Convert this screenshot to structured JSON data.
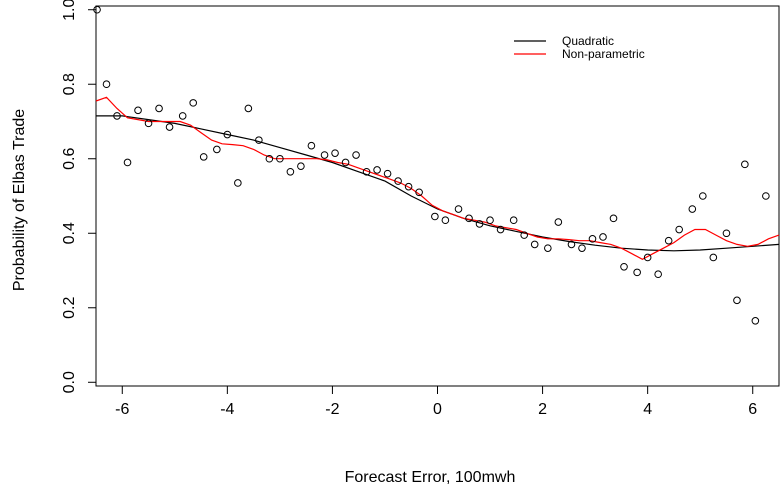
{
  "chart_data": {
    "type": "scatter",
    "title": "",
    "xlabel": "Forecast Error, 100mwh",
    "ylabel": "Probability of Elbas Trade",
    "xlim": [
      -6.5,
      6.5
    ],
    "ylim": [
      -0.01,
      1.01
    ],
    "x_ticks": [
      -6,
      -4,
      -2,
      0,
      2,
      4,
      6
    ],
    "y_ticks": [
      0.0,
      0.2,
      0.4,
      0.6,
      0.8,
      1.0
    ],
    "x_tick_labels": [
      "-6",
      "-4",
      "-2",
      "0",
      "2",
      "4",
      "6"
    ],
    "y_tick_labels": [
      "0.0",
      "0.2",
      "0.4",
      "0.6",
      "0.8",
      "1.0"
    ],
    "legend_position": "top-right",
    "grid": false,
    "points": [
      {
        "x": -6.48,
        "y": 1.0
      },
      {
        "x": -6.3,
        "y": 0.8
      },
      {
        "x": -6.1,
        "y": 0.715
      },
      {
        "x": -5.9,
        "y": 0.59
      },
      {
        "x": -5.7,
        "y": 0.73
      },
      {
        "x": -5.5,
        "y": 0.695
      },
      {
        "x": -5.3,
        "y": 0.735
      },
      {
        "x": -5.1,
        "y": 0.685
      },
      {
        "x": -4.85,
        "y": 0.715
      },
      {
        "x": -4.65,
        "y": 0.75
      },
      {
        "x": -4.45,
        "y": 0.605
      },
      {
        "x": -4.2,
        "y": 0.625
      },
      {
        "x": -4.0,
        "y": 0.665
      },
      {
        "x": -3.8,
        "y": 0.535
      },
      {
        "x": -3.6,
        "y": 0.735
      },
      {
        "x": -3.4,
        "y": 0.65
      },
      {
        "x": -3.2,
        "y": 0.6
      },
      {
        "x": -3.0,
        "y": 0.6
      },
      {
        "x": -2.8,
        "y": 0.565
      },
      {
        "x": -2.6,
        "y": 0.58
      },
      {
        "x": -2.4,
        "y": 0.635
      },
      {
        "x": -2.15,
        "y": 0.61
      },
      {
        "x": -1.95,
        "y": 0.615
      },
      {
        "x": -1.75,
        "y": 0.59
      },
      {
        "x": -1.55,
        "y": 0.61
      },
      {
        "x": -1.35,
        "y": 0.565
      },
      {
        "x": -1.15,
        "y": 0.57
      },
      {
        "x": -0.95,
        "y": 0.56
      },
      {
        "x": -0.75,
        "y": 0.54
      },
      {
        "x": -0.55,
        "y": 0.525
      },
      {
        "x": -0.35,
        "y": 0.51
      },
      {
        "x": -0.05,
        "y": 0.445
      },
      {
        "x": 0.15,
        "y": 0.435
      },
      {
        "x": 0.4,
        "y": 0.465
      },
      {
        "x": 0.6,
        "y": 0.44
      },
      {
        "x": 0.8,
        "y": 0.425
      },
      {
        "x": 1.0,
        "y": 0.435
      },
      {
        "x": 1.2,
        "y": 0.41
      },
      {
        "x": 1.45,
        "y": 0.435
      },
      {
        "x": 1.65,
        "y": 0.395
      },
      {
        "x": 1.85,
        "y": 0.37
      },
      {
        "x": 2.1,
        "y": 0.36
      },
      {
        "x": 2.3,
        "y": 0.43
      },
      {
        "x": 2.55,
        "y": 0.37
      },
      {
        "x": 2.75,
        "y": 0.36
      },
      {
        "x": 2.95,
        "y": 0.385
      },
      {
        "x": 3.15,
        "y": 0.39
      },
      {
        "x": 3.35,
        "y": 0.44
      },
      {
        "x": 3.55,
        "y": 0.31
      },
      {
        "x": 3.8,
        "y": 0.295
      },
      {
        "x": 4.0,
        "y": 0.335
      },
      {
        "x": 4.2,
        "y": 0.29
      },
      {
        "x": 4.4,
        "y": 0.38
      },
      {
        "x": 4.6,
        "y": 0.41
      },
      {
        "x": 4.85,
        "y": 0.465
      },
      {
        "x": 5.05,
        "y": 0.5
      },
      {
        "x": 5.25,
        "y": 0.335
      },
      {
        "x": 5.5,
        "y": 0.4
      },
      {
        "x": 5.7,
        "y": 0.22
      },
      {
        "x": 5.85,
        "y": 0.585
      },
      {
        "x": 6.05,
        "y": 0.165
      },
      {
        "x": 6.25,
        "y": 0.5
      }
    ],
    "series": [
      {
        "name": "Quadratic",
        "color": "#000000",
        "x": [
          -6.5,
          -6,
          -5.5,
          -5,
          -4.5,
          -4,
          -3.5,
          -3,
          -2.5,
          -2,
          -1.5,
          -1,
          -0.5,
          0,
          0.5,
          1,
          1.5,
          2,
          2.5,
          3,
          3.5,
          4,
          4.5,
          5,
          5.5,
          6,
          6.5
        ],
        "y": [
          0.715,
          0.715,
          0.705,
          0.695,
          0.68,
          0.665,
          0.65,
          0.63,
          0.61,
          0.59,
          0.565,
          0.54,
          0.5,
          0.465,
          0.44,
          0.42,
          0.405,
          0.39,
          0.378,
          0.368,
          0.36,
          0.355,
          0.353,
          0.355,
          0.36,
          0.365,
          0.37
        ]
      },
      {
        "name": "Non-parametric",
        "color": "#ff0000",
        "x": [
          -6.5,
          -6.3,
          -6.1,
          -5.9,
          -5.7,
          -5.5,
          -5.3,
          -5.1,
          -4.9,
          -4.7,
          -4.5,
          -4.3,
          -4.1,
          -3.9,
          -3.7,
          -3.5,
          -3.3,
          -3.1,
          -2.9,
          -2.7,
          -2.5,
          -2.3,
          -2.1,
          -1.9,
          -1.7,
          -1.5,
          -1.3,
          -1.1,
          -0.9,
          -0.7,
          -0.5,
          -0.3,
          -0.1,
          0.1,
          0.3,
          0.5,
          0.7,
          0.9,
          1.1,
          1.3,
          1.5,
          1.7,
          1.9,
          2.1,
          2.3,
          2.5,
          2.7,
          2.9,
          3.1,
          3.3,
          3.5,
          3.7,
          3.9,
          4.1,
          4.3,
          4.5,
          4.7,
          4.9,
          5.1,
          5.3,
          5.5,
          5.7,
          5.9,
          6.1,
          6.3,
          6.5
        ],
        "y": [
          0.755,
          0.765,
          0.735,
          0.71,
          0.705,
          0.7,
          0.7,
          0.7,
          0.7,
          0.69,
          0.67,
          0.65,
          0.64,
          0.638,
          0.635,
          0.625,
          0.61,
          0.6,
          0.6,
          0.6,
          0.6,
          0.6,
          0.597,
          0.59,
          0.585,
          0.575,
          0.565,
          0.555,
          0.545,
          0.535,
          0.52,
          0.5,
          0.475,
          0.46,
          0.45,
          0.44,
          0.435,
          0.43,
          0.42,
          0.415,
          0.41,
          0.4,
          0.39,
          0.385,
          0.385,
          0.383,
          0.38,
          0.38,
          0.375,
          0.37,
          0.36,
          0.345,
          0.33,
          0.345,
          0.36,
          0.375,
          0.395,
          0.41,
          0.41,
          0.395,
          0.38,
          0.37,
          0.365,
          0.37,
          0.385,
          0.395
        ]
      }
    ]
  }
}
